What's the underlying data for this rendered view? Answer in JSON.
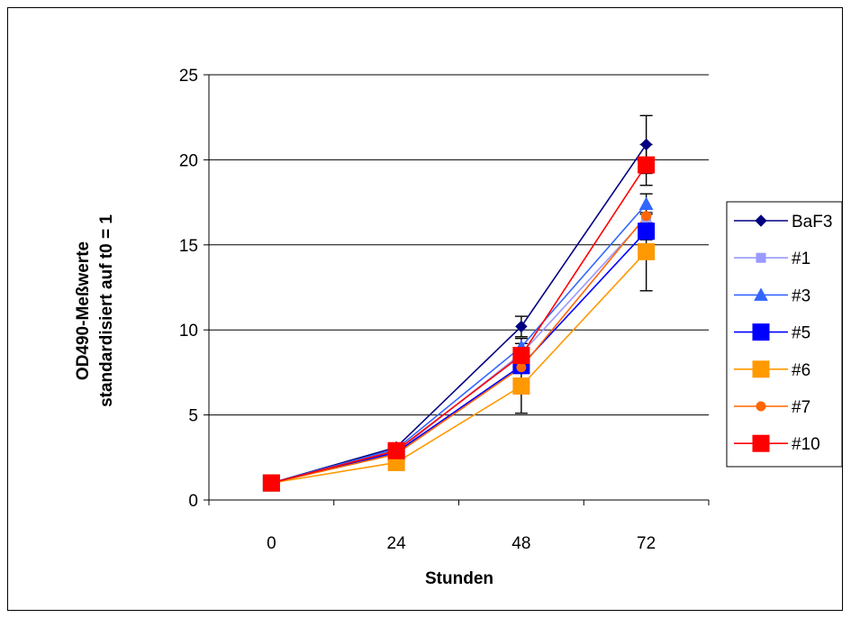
{
  "chart_data": {
    "type": "line",
    "title": "",
    "xlabel": "Stunden",
    "ylabel_lines": [
      "OD490-Meßwerte",
      "standardisiert auf t0 = 1"
    ],
    "categories": [
      "0",
      "24",
      "48",
      "72"
    ],
    "yticks": [
      "0",
      "5",
      "10",
      "15",
      "20",
      "25"
    ],
    "ylim": [
      0,
      25
    ],
    "grid": true,
    "legend_position": "right",
    "series": [
      {
        "name": "BaF3",
        "marker": "diamond",
        "color": "#000080",
        "values": [
          1,
          3.1,
          10.2,
          20.9
        ],
        "errors": [
          0,
          0.15,
          0.6,
          1.7
        ]
      },
      {
        "name": "#1",
        "marker": "square-small",
        "color": "#9999FF",
        "values": [
          1,
          2.8,
          8.6,
          16.6
        ],
        "errors": [
          0,
          0,
          0,
          0
        ]
      },
      {
        "name": "#3",
        "marker": "triangle",
        "color": "#3366FF",
        "values": [
          1,
          3.0,
          9.0,
          17.4
        ],
        "errors": [
          0,
          0.1,
          0.5,
          0.6
        ]
      },
      {
        "name": "#5",
        "marker": "square",
        "color": "#0000FF",
        "values": [
          1,
          2.8,
          7.9,
          15.8
        ],
        "errors": [
          0,
          0.1,
          0.4,
          0.5
        ]
      },
      {
        "name": "#6",
        "marker": "square",
        "color": "#FF9900",
        "values": [
          1,
          2.2,
          6.7,
          14.6
        ],
        "errors": [
          0,
          0.1,
          1.6,
          2.3
        ]
      },
      {
        "name": "#7",
        "marker": "circle",
        "color": "#FF6600",
        "values": [
          1,
          2.7,
          7.8,
          16.7
        ],
        "errors": [
          0,
          0,
          0,
          0
        ]
      },
      {
        "name": "#10",
        "marker": "square",
        "color": "#FF0000",
        "values": [
          1,
          2.9,
          8.5,
          19.7
        ],
        "errors": [
          0,
          0.15,
          0.7,
          1.2
        ]
      }
    ]
  }
}
